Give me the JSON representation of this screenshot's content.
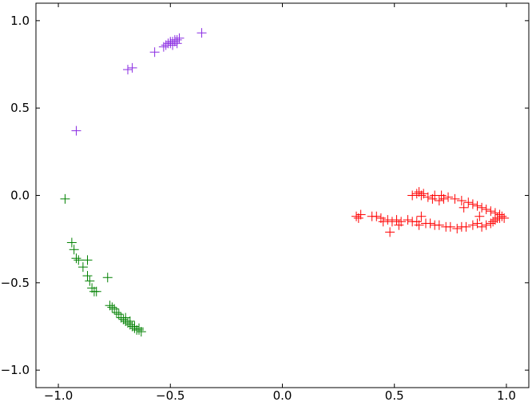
{
  "chart_data": {
    "type": "scatter",
    "title": "",
    "xlabel": "",
    "ylabel": "",
    "xlim": [
      -1.1,
      1.1
    ],
    "ylim": [
      -1.1,
      1.1
    ],
    "grid": false,
    "marker": "plus",
    "x_ticks": [
      -1.0,
      -0.5,
      0.0,
      0.5,
      1.0
    ],
    "x_tick_labels": [
      "−1.0",
      "−0.5",
      "0.0",
      "0.5",
      "1.0"
    ],
    "y_ticks": [
      1.0,
      0.5,
      0.0,
      -0.5,
      -1.0
    ],
    "y_tick_labels": [
      "1.0",
      "0.5",
      "0.0",
      "−0.5",
      "−1.0"
    ],
    "series": [
      {
        "color": "#8a2be2",
        "points": [
          [
            -0.92,
            0.37
          ],
          [
            -0.69,
            0.72
          ],
          [
            -0.67,
            0.73
          ],
          [
            -0.57,
            0.82
          ],
          [
            -0.53,
            0.85
          ],
          [
            -0.52,
            0.86
          ],
          [
            -0.51,
            0.87
          ],
          [
            -0.5,
            0.87
          ],
          [
            -0.49,
            0.88
          ],
          [
            -0.48,
            0.89
          ],
          [
            -0.47,
            0.89
          ],
          [
            -0.46,
            0.9
          ],
          [
            -0.5,
            0.88
          ],
          [
            -0.49,
            0.86
          ],
          [
            -0.48,
            0.88
          ],
          [
            -0.47,
            0.87
          ],
          [
            -0.36,
            0.93
          ]
        ]
      },
      {
        "color": "#008000",
        "points": [
          [
            -0.97,
            -0.02
          ],
          [
            -0.94,
            -0.27
          ],
          [
            -0.93,
            -0.31
          ],
          [
            -0.92,
            -0.36
          ],
          [
            -0.91,
            -0.37
          ],
          [
            -0.89,
            -0.41
          ],
          [
            -0.87,
            -0.37
          ],
          [
            -0.87,
            -0.46
          ],
          [
            -0.86,
            -0.49
          ],
          [
            -0.85,
            -0.53
          ],
          [
            -0.84,
            -0.55
          ],
          [
            -0.83,
            -0.55
          ],
          [
            -0.78,
            -0.47
          ],
          [
            -0.77,
            -0.63
          ],
          [
            -0.76,
            -0.64
          ],
          [
            -0.75,
            -0.65
          ],
          [
            -0.74,
            -0.67
          ],
          [
            -0.73,
            -0.68
          ],
          [
            -0.72,
            -0.7
          ],
          [
            -0.71,
            -0.71
          ],
          [
            -0.7,
            -0.72
          ],
          [
            -0.69,
            -0.73
          ],
          [
            -0.68,
            -0.74
          ],
          [
            -0.67,
            -0.75
          ],
          [
            -0.66,
            -0.76
          ],
          [
            -0.65,
            -0.77
          ],
          [
            -0.64,
            -0.77
          ],
          [
            -0.63,
            -0.78
          ],
          [
            -0.66,
            -0.75
          ],
          [
            -0.64,
            -0.76
          ],
          [
            -0.7,
            -0.7
          ],
          [
            -0.68,
            -0.72
          ]
        ]
      },
      {
        "color": "#ff0000",
        "points": [
          [
            0.33,
            -0.12
          ],
          [
            0.34,
            -0.13
          ],
          [
            0.35,
            -0.11
          ],
          [
            0.4,
            -0.12
          ],
          [
            0.42,
            -0.12
          ],
          [
            0.44,
            -0.13
          ],
          [
            0.45,
            -0.15
          ],
          [
            0.47,
            -0.14
          ],
          [
            0.49,
            -0.15
          ],
          [
            0.51,
            -0.14
          ],
          [
            0.53,
            -0.15
          ],
          [
            0.56,
            -0.14
          ],
          [
            0.58,
            -0.15
          ],
          [
            0.6,
            -0.15
          ],
          [
            0.61,
            -0.17
          ],
          [
            0.64,
            -0.16
          ],
          [
            0.66,
            -0.16
          ],
          [
            0.68,
            -0.17
          ],
          [
            0.7,
            -0.17
          ],
          [
            0.73,
            -0.18
          ],
          [
            0.75,
            -0.18
          ],
          [
            0.78,
            -0.19
          ],
          [
            0.8,
            -0.18
          ],
          [
            0.82,
            -0.18
          ],
          [
            0.85,
            -0.17
          ],
          [
            0.87,
            -0.16
          ],
          [
            0.89,
            -0.18
          ],
          [
            0.91,
            -0.17
          ],
          [
            0.93,
            -0.16
          ],
          [
            0.94,
            -0.15
          ],
          [
            0.95,
            -0.14
          ],
          [
            0.96,
            -0.13
          ],
          [
            0.97,
            -0.13
          ],
          [
            0.98,
            -0.12
          ],
          [
            0.99,
            -0.13
          ],
          [
            0.97,
            -0.11
          ],
          [
            0.95,
            -0.1
          ],
          [
            0.93,
            -0.09
          ],
          [
            0.91,
            -0.08
          ],
          [
            0.89,
            -0.07
          ],
          [
            0.87,
            -0.06
          ],
          [
            0.85,
            -0.05
          ],
          [
            0.83,
            -0.04
          ],
          [
            0.8,
            -0.03
          ],
          [
            0.77,
            -0.02
          ],
          [
            0.74,
            -0.01
          ],
          [
            0.71,
            0.0
          ],
          [
            0.68,
            0.0
          ],
          [
            0.65,
            -0.01
          ],
          [
            0.62,
            0.0
          ],
          [
            0.6,
            0.01
          ],
          [
            0.58,
            0.0
          ],
          [
            0.61,
            0.02
          ],
          [
            0.63,
            0.01
          ],
          [
            0.67,
            -0.02
          ],
          [
            0.7,
            -0.03
          ],
          [
            0.48,
            -0.21
          ],
          [
            0.52,
            -0.17
          ],
          [
            0.62,
            -0.12
          ],
          [
            0.72,
            -0.02
          ],
          [
            0.81,
            -0.07
          ],
          [
            0.88,
            -0.12
          ]
        ]
      }
    ]
  }
}
